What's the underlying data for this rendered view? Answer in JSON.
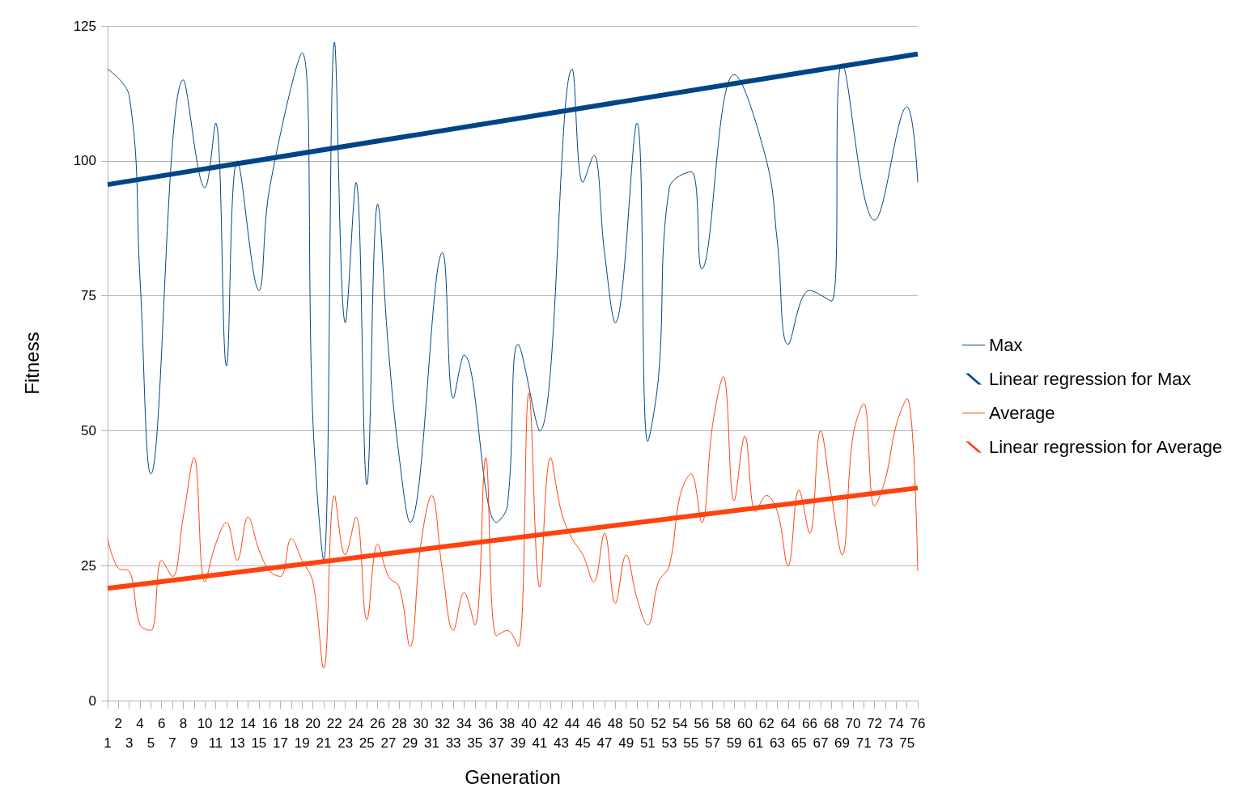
{
  "chart_data": {
    "type": "line",
    "xlabel": "Generation",
    "ylabel": "Fitness",
    "categories": [
      "1",
      "2",
      "3",
      "4",
      "5",
      "6",
      "7",
      "8",
      "9",
      "10",
      "11",
      "12",
      "13",
      "14",
      "15",
      "16",
      "17",
      "18",
      "19",
      "20",
      "21",
      "22",
      "23",
      "24",
      "25",
      "26",
      "27",
      "28",
      "29",
      "30",
      "31",
      "32",
      "33",
      "34",
      "35",
      "36",
      "37",
      "38",
      "39",
      "40",
      "41",
      "42",
      "43",
      "44",
      "45",
      "46",
      "47",
      "48",
      "49",
      "50",
      "51",
      "52",
      "53",
      "54",
      "55",
      "56",
      "57",
      "58",
      "59",
      "60",
      "61",
      "62",
      "63",
      "64",
      "65",
      "66",
      "67",
      "68",
      "69",
      "70",
      "71",
      "72",
      "73",
      "74",
      "75",
      "76"
    ],
    "series": [
      {
        "name": "Max",
        "color": "#004586",
        "values": [
          117,
          null,
          112,
          78,
          42,
          null,
          null,
          115,
          null,
          95,
          107,
          62,
          100,
          null,
          76,
          95,
          null,
          null,
          120,
          52,
          26,
          122,
          70,
          96,
          40,
          92,
          65,
          45,
          33,
          null,
          null,
          83,
          56,
          64,
          null,
          null,
          33,
          36,
          66,
          null,
          50,
          null,
          null,
          117,
          96,
          101,
          83,
          70,
          null,
          107,
          48,
          60,
          95,
          null,
          98,
          80,
          null,
          null,
          116,
          null,
          null,
          100,
          85,
          66,
          null,
          76,
          null,
          74,
          118,
          null,
          null,
          89,
          null,
          null,
          110,
          96
        ]
      },
      {
        "name": "Linear regression for Max",
        "color": "#004586",
        "x": [
          "1",
          "76"
        ],
        "values": [
          95.6,
          119.8
        ]
      },
      {
        "name": "Average",
        "color": "#ff420e",
        "values": [
          30,
          24.5,
          24,
          14,
          13,
          26,
          23,
          34,
          45,
          22,
          29,
          33,
          26,
          34,
          28,
          24,
          23,
          30,
          26,
          22,
          6,
          38,
          27,
          34,
          15,
          29,
          23,
          21,
          10,
          29,
          38,
          24,
          13,
          20,
          14,
          45,
          12,
          13,
          10,
          57,
          21,
          45,
          35,
          30,
          27,
          22,
          31,
          18,
          27,
          19,
          14,
          22,
          25,
          38,
          42,
          33,
          51,
          60,
          37,
          49,
          35,
          38,
          35,
          25,
          39,
          31,
          50,
          38,
          27,
          49,
          55,
          36,
          41,
          51,
          56,
          24
        ]
      },
      {
        "name": "Linear regression for Average",
        "color": "#ff420e",
        "x": [
          "1",
          "76"
        ],
        "values": [
          20.8,
          39.4
        ]
      }
    ],
    "ylim": [
      0,
      125
    ],
    "yticks": [
      0,
      25,
      50,
      75,
      100,
      125
    ],
    "grid": "y",
    "legend": "right",
    "marker": "none",
    "line_style": "solid"
  }
}
